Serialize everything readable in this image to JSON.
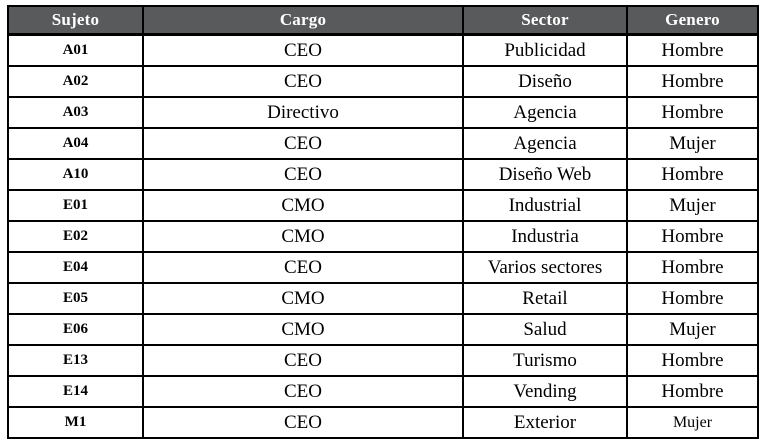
{
  "colors": {
    "header_bg": "#595A5C",
    "header_text": "#FFFFFF",
    "border": "#000000",
    "cell_text": "#000000",
    "row_bg": "#FFFFFF"
  },
  "table": {
    "columns": [
      "Sujeto",
      "Cargo",
      "Sector",
      "Genero"
    ],
    "column_keys": [
      "sujeto",
      "cargo",
      "sector",
      "genero"
    ],
    "rows": [
      [
        "A01",
        "CEO",
        "Publicidad",
        "Hombre"
      ],
      [
        "A02",
        "CEO",
        "Diseño",
        "Hombre"
      ],
      [
        "A03",
        "Directivo",
        "Agencia",
        "Hombre"
      ],
      [
        "A04",
        "CEO",
        "Agencia",
        "Mujer"
      ],
      [
        "A10",
        "CEO",
        "Diseño Web",
        "Hombre"
      ],
      [
        "E01",
        "CMO",
        "Industrial",
        "Mujer"
      ],
      [
        "E02",
        "CMO",
        "Industria",
        "Hombre"
      ],
      [
        "E04",
        "CEO",
        "Varios sectores",
        "Hombre"
      ],
      [
        "E05",
        "CMO",
        "Retail",
        "Hombre"
      ],
      [
        "E06",
        "CMO",
        "Salud",
        "Mujer"
      ],
      [
        "E13",
        "CEO",
        "Turismo",
        "Hombre"
      ],
      [
        "E14",
        "CEO",
        "Vending",
        "Hombre"
      ],
      [
        "M1",
        "CEO",
        "Exterior",
        "Mujer"
      ]
    ]
  }
}
